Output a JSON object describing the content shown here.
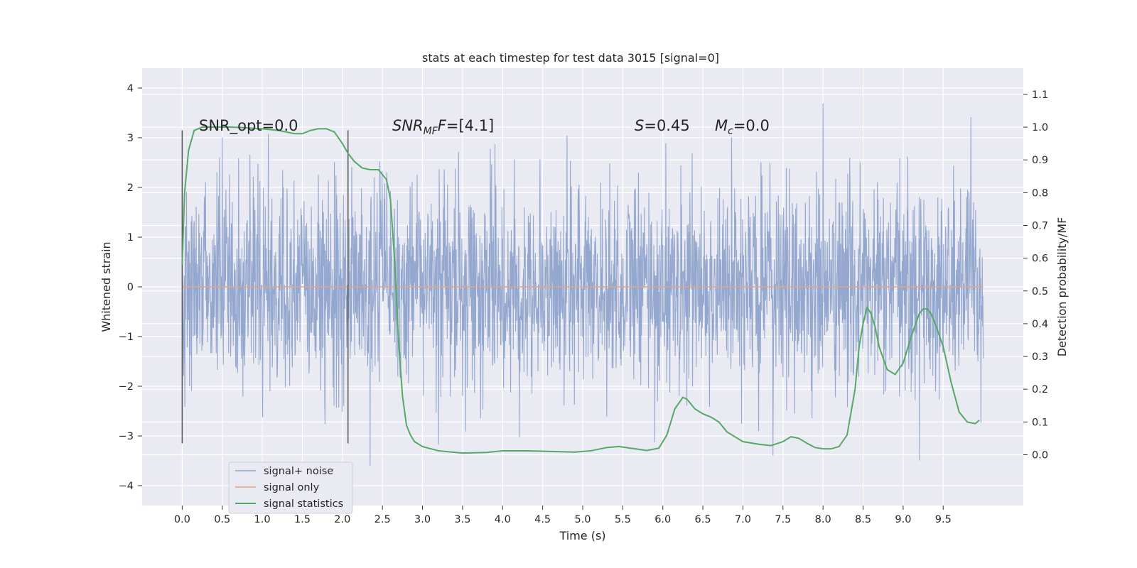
{
  "chart_data": {
    "type": "line",
    "title": "stats at each timestep for test data 3015 [signal=0]",
    "xlabel": "Time (s)",
    "ylabel": "Whitened strain",
    "y2label": "Detection probability/MF",
    "xlim": [
      -0.5,
      10.5
    ],
    "ylim": [
      -4.4,
      4.4
    ],
    "y2lim": [
      -0.155,
      1.18
    ],
    "x_ticks": [
      "0.0",
      "0.5",
      "1.0",
      "1.5",
      "2.0",
      "2.5",
      "3.0",
      "3.5",
      "4.0",
      "4.5",
      "5.0",
      "5.5",
      "6.0",
      "6.5",
      "7.0",
      "7.5",
      "8.0",
      "8.5",
      "9.0",
      "9.5"
    ],
    "y_ticks": [
      "4",
      "3",
      "2",
      "1",
      "0",
      "−1",
      "−2",
      "−3",
      "−4"
    ],
    "y2_ticks": [
      "1.1",
      "1.0",
      "0.9",
      "0.8",
      "0.7",
      "0.6",
      "0.5",
      "0.4",
      "0.3",
      "0.2",
      "0.1",
      "0.0"
    ],
    "grid": true,
    "legend_position": "lower-left",
    "annotations": {
      "snr_opt": "SNR_opt=0.0",
      "snr_mf_base": "SNR",
      "snr_mf_sub": "MF",
      "snr_mf_value": "=[4.1]",
      "s_label": "S",
      "s_value": "=0.45",
      "mc_base": "M",
      "mc_sub": "c",
      "mc_value": "=0.0"
    },
    "vertical_markers_x": [
      0.0,
      2.07
    ],
    "series": [
      {
        "name": "signal+ noise",
        "color": "#8fa3cc",
        "x_range": [
          0.0,
          10.0
        ],
        "y_range_approx": [
          -3.6,
          4.0
        ],
        "description": "whitened noise trace"
      },
      {
        "name": "signal only",
        "color": "#e0a48b",
        "x": [
          0.0,
          10.0
        ],
        "y": [
          0.0,
          0.0
        ]
      },
      {
        "name": "signal statistics",
        "color": "#55a868",
        "axis": "right",
        "x": [
          0.0,
          0.03,
          0.08,
          0.15,
          0.25,
          0.4,
          0.6,
          0.8,
          1.0,
          1.2,
          1.4,
          1.5,
          1.6,
          1.7,
          1.8,
          1.9,
          2.0,
          2.07,
          2.15,
          2.25,
          2.35,
          2.45,
          2.55,
          2.6,
          2.65,
          2.7,
          2.75,
          2.8,
          2.85,
          2.9,
          3.0,
          3.2,
          3.5,
          3.8,
          4.0,
          4.3,
          4.6,
          4.9,
          5.1,
          5.3,
          5.45,
          5.6,
          5.8,
          5.95,
          6.05,
          6.15,
          6.25,
          6.3,
          6.4,
          6.5,
          6.6,
          6.7,
          6.8,
          7.0,
          7.2,
          7.35,
          7.5,
          7.6,
          7.7,
          7.8,
          7.9,
          8.0,
          8.1,
          8.2,
          8.3,
          8.4,
          8.45,
          8.5,
          8.55,
          8.6,
          8.65,
          8.7,
          8.8,
          8.9,
          9.0,
          9.1,
          9.2,
          9.25,
          9.3,
          9.35,
          9.4,
          9.5,
          9.6,
          9.7,
          9.8,
          9.9,
          9.95
        ],
        "y": [
          0.58,
          0.8,
          0.93,
          0.99,
          1.0,
          1.0,
          1.0,
          0.998,
          0.995,
          0.99,
          0.98,
          0.98,
          0.99,
          0.995,
          0.995,
          0.985,
          0.95,
          0.92,
          0.895,
          0.875,
          0.87,
          0.87,
          0.84,
          0.78,
          0.6,
          0.35,
          0.18,
          0.09,
          0.06,
          0.04,
          0.025,
          0.012,
          0.005,
          0.007,
          0.012,
          0.012,
          0.01,
          0.008,
          0.012,
          0.022,
          0.025,
          0.02,
          0.013,
          0.02,
          0.06,
          0.14,
          0.175,
          0.17,
          0.14,
          0.125,
          0.115,
          0.1,
          0.07,
          0.04,
          0.032,
          0.028,
          0.04,
          0.055,
          0.05,
          0.035,
          0.022,
          0.018,
          0.018,
          0.025,
          0.06,
          0.2,
          0.33,
          0.4,
          0.45,
          0.43,
          0.39,
          0.33,
          0.26,
          0.245,
          0.28,
          0.36,
          0.43,
          0.445,
          0.445,
          0.43,
          0.4,
          0.33,
          0.22,
          0.13,
          0.1,
          0.095,
          0.105
        ]
      }
    ]
  }
}
